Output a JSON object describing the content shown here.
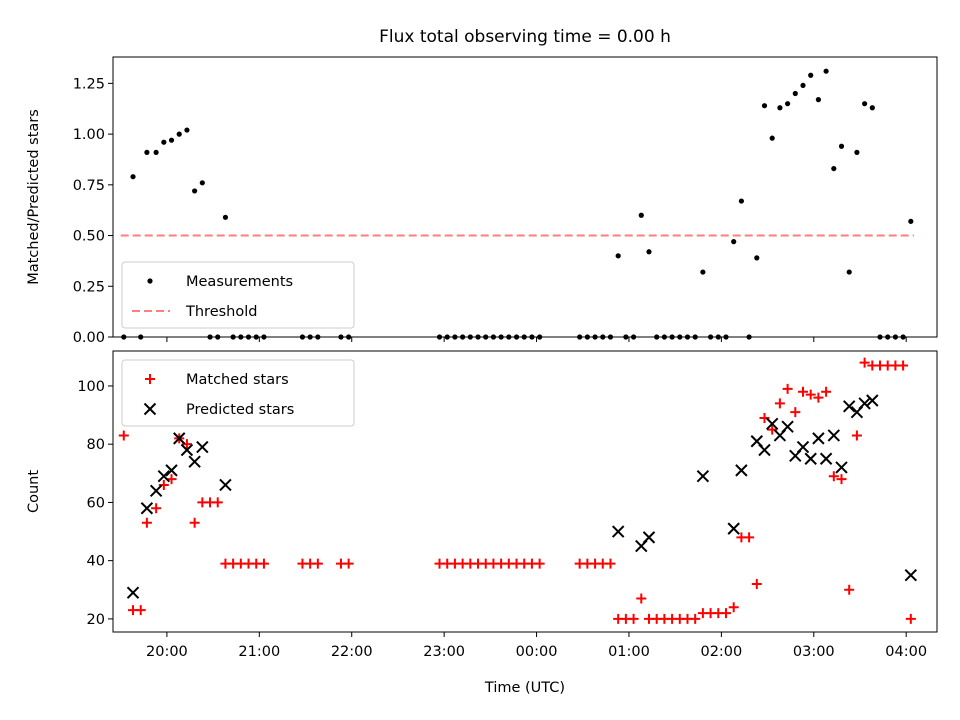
{
  "figure": {
    "title": "Flux total observing time = 0.00 h",
    "xlabel": "Time (UTC)"
  },
  "chart_data": [
    {
      "type": "scatter",
      "ylabel": "Matched/Predicted stars",
      "ylim": [
        0,
        1.38
      ],
      "yticks": [
        "0.00",
        "0.25",
        "0.50",
        "0.75",
        "1.00",
        "1.25"
      ],
      "xlim": [
        "19:25",
        "04:20"
      ],
      "legend": "lower-left",
      "series": [
        {
          "name": "Measurements",
          "marker": "dot",
          "color": "#000000",
          "points": [
            [
              "19:32",
              0.0
            ],
            [
              "19:38",
              0.79
            ],
            [
              "19:43",
              0.0
            ],
            [
              "19:47",
              0.91
            ],
            [
              "19:53",
              0.91
            ],
            [
              "19:58",
              0.96
            ],
            [
              "20:03",
              0.97
            ],
            [
              "20:08",
              1.0
            ],
            [
              "20:13",
              1.02
            ],
            [
              "20:18",
              0.72
            ],
            [
              "20:23",
              0.76
            ],
            [
              "20:28",
              0.0
            ],
            [
              "20:33",
              0.0
            ],
            [
              "20:38",
              0.59
            ],
            [
              "20:43",
              0.0
            ],
            [
              "20:48",
              0.0
            ],
            [
              "20:53",
              0.0
            ],
            [
              "20:58",
              0.0
            ],
            [
              "21:03",
              0.0
            ],
            [
              "21:28",
              0.0
            ],
            [
              "21:33",
              0.0
            ],
            [
              "21:38",
              0.0
            ],
            [
              "21:53",
              0.0
            ],
            [
              "21:58",
              0.0
            ],
            [
              "22:57",
              0.0
            ],
            [
              "23:02",
              0.0
            ],
            [
              "23:07",
              0.0
            ],
            [
              "23:12",
              0.0
            ],
            [
              "23:17",
              0.0
            ],
            [
              "23:22",
              0.0
            ],
            [
              "23:27",
              0.0
            ],
            [
              "23:32",
              0.0
            ],
            [
              "23:37",
              0.0
            ],
            [
              "23:42",
              0.0
            ],
            [
              "23:47",
              0.0
            ],
            [
              "23:52",
              0.0
            ],
            [
              "23:57",
              0.0
            ],
            [
              "00:02",
              0.0
            ],
            [
              "00:28",
              0.0
            ],
            [
              "00:33",
              0.0
            ],
            [
              "00:38",
              0.0
            ],
            [
              "00:43",
              0.0
            ],
            [
              "00:48",
              0.0
            ],
            [
              "00:53",
              0.4
            ],
            [
              "00:58",
              0.0
            ],
            [
              "01:03",
              0.0
            ],
            [
              "01:08",
              0.6
            ],
            [
              "01:13",
              0.42
            ],
            [
              "01:18",
              0.0
            ],
            [
              "01:23",
              0.0
            ],
            [
              "01:28",
              0.0
            ],
            [
              "01:33",
              0.0
            ],
            [
              "01:38",
              0.0
            ],
            [
              "01:43",
              0.0
            ],
            [
              "01:48",
              0.32
            ],
            [
              "01:53",
              0.0
            ],
            [
              "01:58",
              0.0
            ],
            [
              "02:03",
              0.0
            ],
            [
              "02:08",
              0.47
            ],
            [
              "02:13",
              0.67
            ],
            [
              "02:18",
              0.0
            ],
            [
              "02:23",
              0.39
            ],
            [
              "02:28",
              1.14
            ],
            [
              "02:33",
              0.98
            ],
            [
              "02:38",
              1.13
            ],
            [
              "02:43",
              1.15
            ],
            [
              "02:48",
              1.2
            ],
            [
              "02:53",
              1.24
            ],
            [
              "02:58",
              1.29
            ],
            [
              "03:03",
              1.17
            ],
            [
              "03:08",
              1.31
            ],
            [
              "03:13",
              0.83
            ],
            [
              "03:18",
              0.94
            ],
            [
              "03:23",
              0.32
            ],
            [
              "03:28",
              0.91
            ],
            [
              "03:33",
              1.15
            ],
            [
              "03:38",
              1.13
            ],
            [
              "03:43",
              0.0
            ],
            [
              "03:48",
              0.0
            ],
            [
              "03:53",
              0.0
            ],
            [
              "03:58",
              0.0
            ],
            [
              "04:03",
              0.57
            ]
          ]
        },
        {
          "name": "Threshold",
          "style": "dashed",
          "color": "#ff7f7f",
          "points": [
            [
              "19:30",
              0.5
            ],
            [
              "04:05",
              0.5
            ]
          ]
        }
      ]
    },
    {
      "type": "scatter",
      "ylabel": "Count",
      "ylim": [
        15.5,
        112
      ],
      "yticks": [
        "20",
        "40",
        "60",
        "80",
        "100"
      ],
      "xlim": [
        "19:25",
        "04:20"
      ],
      "xticks": [
        "20:00",
        "21:00",
        "22:00",
        "23:00",
        "00:00",
        "01:00",
        "02:00",
        "03:00",
        "04:00"
      ],
      "legend": "upper-left",
      "series": [
        {
          "name": "Matched stars",
          "marker": "plus",
          "color": "#ff0000",
          "points": [
            [
              "19:32",
              83
            ],
            [
              "19:38",
              23
            ],
            [
              "19:43",
              23
            ],
            [
              "19:47",
              53
            ],
            [
              "19:53",
              58
            ],
            [
              "19:58",
              66
            ],
            [
              "20:03",
              68
            ],
            [
              "20:08",
              82
            ],
            [
              "20:13",
              80
            ],
            [
              "20:18",
              53
            ],
            [
              "20:23",
              60
            ],
            [
              "20:28",
              60
            ],
            [
              "20:33",
              60
            ],
            [
              "20:38",
              39
            ],
            [
              "20:43",
              39
            ],
            [
              "20:48",
              39
            ],
            [
              "20:53",
              39
            ],
            [
              "20:58",
              39
            ],
            [
              "21:03",
              39
            ],
            [
              "21:28",
              39
            ],
            [
              "21:33",
              39
            ],
            [
              "21:38",
              39
            ],
            [
              "21:53",
              39
            ],
            [
              "21:58",
              39
            ],
            [
              "22:57",
              39
            ],
            [
              "23:02",
              39
            ],
            [
              "23:07",
              39
            ],
            [
              "23:12",
              39
            ],
            [
              "23:17",
              39
            ],
            [
              "23:22",
              39
            ],
            [
              "23:27",
              39
            ],
            [
              "23:32",
              39
            ],
            [
              "23:37",
              39
            ],
            [
              "23:42",
              39
            ],
            [
              "23:47",
              39
            ],
            [
              "23:52",
              39
            ],
            [
              "23:57",
              39
            ],
            [
              "00:02",
              39
            ],
            [
              "00:28",
              39
            ],
            [
              "00:33",
              39
            ],
            [
              "00:38",
              39
            ],
            [
              "00:43",
              39
            ],
            [
              "00:48",
              39
            ],
            [
              "00:53",
              20
            ],
            [
              "00:58",
              20
            ],
            [
              "01:03",
              20
            ],
            [
              "01:08",
              27
            ],
            [
              "01:13",
              20
            ],
            [
              "01:18",
              20
            ],
            [
              "01:23",
              20
            ],
            [
              "01:28",
              20
            ],
            [
              "01:33",
              20
            ],
            [
              "01:38",
              20
            ],
            [
              "01:43",
              20
            ],
            [
              "01:48",
              22
            ],
            [
              "01:53",
              22
            ],
            [
              "01:58",
              22
            ],
            [
              "02:03",
              22
            ],
            [
              "02:08",
              24
            ],
            [
              "02:13",
              48
            ],
            [
              "02:18",
              48
            ],
            [
              "02:23",
              32
            ],
            [
              "02:28",
              89
            ],
            [
              "02:33",
              85
            ],
            [
              "02:38",
              94
            ],
            [
              "02:43",
              99
            ],
            [
              "02:48",
              91
            ],
            [
              "02:53",
              98
            ],
            [
              "02:58",
              97
            ],
            [
              "03:03",
              96
            ],
            [
              "03:08",
              98
            ],
            [
              "03:13",
              69
            ],
            [
              "03:18",
              68
            ],
            [
              "03:23",
              30
            ],
            [
              "03:28",
              83
            ],
            [
              "03:33",
              108
            ],
            [
              "03:38",
              107
            ],
            [
              "03:43",
              107
            ],
            [
              "03:48",
              107
            ],
            [
              "03:53",
              107
            ],
            [
              "03:58",
              107
            ],
            [
              "04:03",
              20
            ]
          ]
        },
        {
          "name": "Predicted stars",
          "marker": "x",
          "color": "#000000",
          "points": [
            [
              "19:38",
              29
            ],
            [
              "19:47",
              58
            ],
            [
              "19:53",
              64
            ],
            [
              "19:58",
              69
            ],
            [
              "20:03",
              71
            ],
            [
              "20:08",
              82
            ],
            [
              "20:13",
              78
            ],
            [
              "20:18",
              74
            ],
            [
              "20:23",
              79
            ],
            [
              "20:38",
              66
            ],
            [
              "00:53",
              50
            ],
            [
              "01:08",
              45
            ],
            [
              "01:13",
              48
            ],
            [
              "01:48",
              69
            ],
            [
              "02:08",
              51
            ],
            [
              "02:13",
              71
            ],
            [
              "02:23",
              81
            ],
            [
              "02:28",
              78
            ],
            [
              "02:33",
              87
            ],
            [
              "02:38",
              83
            ],
            [
              "02:43",
              86
            ],
            [
              "02:48",
              76
            ],
            [
              "02:53",
              79
            ],
            [
              "02:58",
              75
            ],
            [
              "03:03",
              82
            ],
            [
              "03:08",
              75
            ],
            [
              "03:13",
              83
            ],
            [
              "03:18",
              72
            ],
            [
              "03:23",
              93
            ],
            [
              "03:28",
              91
            ],
            [
              "03:33",
              94
            ],
            [
              "03:38",
              95
            ],
            [
              "04:03",
              35
            ]
          ]
        }
      ]
    }
  ]
}
